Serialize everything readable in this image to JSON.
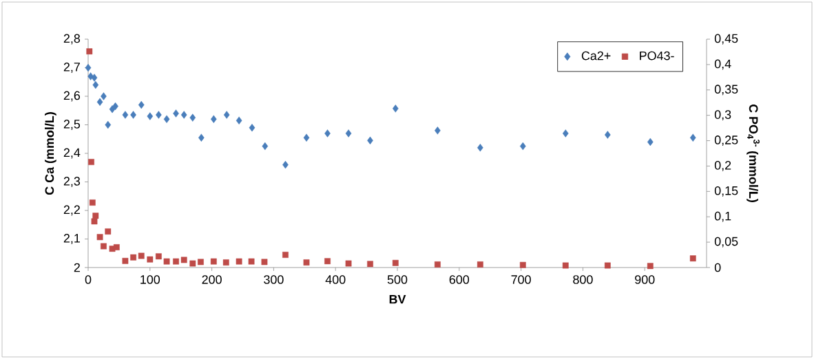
{
  "chart_data": {
    "type": "scatter",
    "xlabel": "BV",
    "ylabel": "C Ca (mmol/L)",
    "y2label": "C PO$_{4}$$^{3-}$ (mmol/L)",
    "xlim": [
      0,
      1000
    ],
    "xticks": [
      0,
      100,
      200,
      300,
      400,
      500,
      600,
      700,
      800,
      900
    ],
    "ylim": [
      2,
      2.8
    ],
    "yticks": [
      2,
      {
        "value": 2.1,
        "label": "2,1"
      },
      {
        "value": 2.2,
        "label": "2,2"
      },
      {
        "value": 2.3,
        "label": "2,3"
      },
      {
        "value": 2.4,
        "label": "2,4"
      },
      {
        "value": 2.5,
        "label": "2,5"
      },
      {
        "value": 2.6,
        "label": "2,6"
      },
      {
        "value": 2.7,
        "label": "2,7"
      },
      {
        "value": 2.8,
        "label": "2,8"
      }
    ],
    "y2lim": [
      0,
      0.45
    ],
    "y2ticks": [
      0,
      {
        "value": 0.05,
        "label": "0,05"
      },
      {
        "value": 0.1,
        "label": "0,1"
      },
      {
        "value": 0.15,
        "label": "0,15"
      },
      {
        "value": 0.2,
        "label": "0,2"
      },
      {
        "value": 0.25,
        "label": "0,25"
      },
      {
        "value": 0.3,
        "label": "0,3"
      },
      {
        "value": 0.35,
        "label": "0,35"
      },
      {
        "value": 0.4,
        "label": "0,4"
      },
      {
        "value": 0.45,
        "label": "0,45"
      }
    ],
    "legend": "top right",
    "grid": false,
    "series": [
      {
        "name": "Ca2+",
        "color": "#4a7ebb",
        "marker": "diamond",
        "x": [
          0,
          4,
          10,
          12,
          19,
          25,
          32,
          39,
          44,
          60,
          73,
          86,
          100,
          114,
          127,
          142,
          155,
          169,
          183,
          203,
          224,
          244,
          265,
          286,
          319,
          353,
          387,
          421,
          456,
          497,
          565,
          634,
          703,
          772,
          840,
          909,
          978
        ],
        "values": [
          2.7,
          2.67,
          2.665,
          2.64,
          2.58,
          2.6,
          2.5,
          2.555,
          2.565,
          2.535,
          2.535,
          2.57,
          2.53,
          2.535,
          2.52,
          2.54,
          2.535,
          2.525,
          2.455,
          2.52,
          2.535,
          2.515,
          2.49,
          2.425,
          2.36,
          2.455,
          2.47,
          2.47,
          2.445,
          2.557,
          2.48,
          2.42,
          2.425,
          2.47,
          2.465,
          2.44,
          2.455
        ]
      },
      {
        "name": "PO43-",
        "color": "#be4b48",
        "marker": "square",
        "axis": "y2",
        "x": [
          2,
          5,
          7,
          10,
          12,
          19,
          25,
          32,
          39,
          46,
          60,
          73,
          86,
          100,
          114,
          127,
          142,
          155,
          169,
          182,
          203,
          223,
          244,
          264,
          285,
          319,
          353,
          387,
          421,
          456,
          497,
          565,
          634,
          703,
          772,
          840,
          909,
          978
        ],
        "values": [
          0.426,
          0.208,
          0.128,
          0.091,
          0.102,
          0.06,
          0.042,
          0.071,
          0.037,
          0.04,
          0.013,
          0.02,
          0.023,
          0.016,
          0.022,
          0.012,
          0.012,
          0.015,
          0.008,
          0.011,
          0.012,
          0.01,
          0.012,
          0.012,
          0.011,
          0.025,
          0.01,
          0.0125,
          0.008,
          0.007,
          0.009,
          0.006,
          0.006,
          0.005,
          0.004,
          0.004,
          0.003,
          0.018
        ]
      }
    ]
  }
}
